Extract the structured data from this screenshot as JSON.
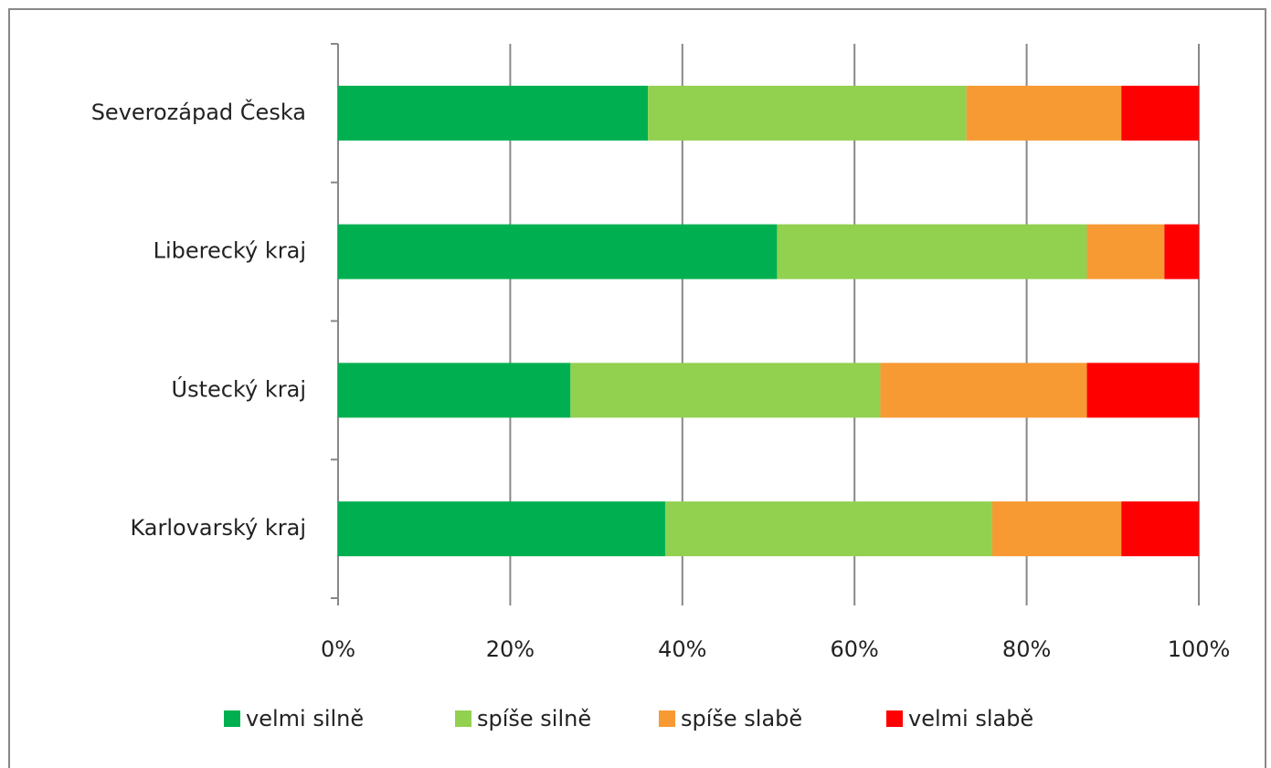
{
  "chart_data": {
    "type": "bar",
    "orientation": "horizontal",
    "stacked": true,
    "categories": [
      "Severozápad Česka",
      "Liberecký kraj",
      "Ústecký kraj",
      "Karlovarský kraj"
    ],
    "series": [
      {
        "name": "velmi silně",
        "color": "#00b050",
        "values": [
          36,
          51,
          27,
          38
        ]
      },
      {
        "name": "spíše silně",
        "color": "#92d050",
        "values": [
          37,
          36,
          36,
          38
        ]
      },
      {
        "name": "spíše slabě",
        "color": "#f79a33",
        "values": [
          18,
          9,
          24,
          15
        ]
      },
      {
        "name": "velmi slabě",
        "color": "#ff0000",
        "values": [
          9,
          4,
          13,
          9
        ]
      }
    ],
    "xlim": [
      0,
      100
    ],
    "xticks": [
      {
        "value": 0,
        "label": "0%"
      },
      {
        "value": 20,
        "label": "20%"
      },
      {
        "value": 40,
        "label": "40%"
      },
      {
        "value": 60,
        "label": "60%"
      },
      {
        "value": 80,
        "label": "80%"
      },
      {
        "value": 100,
        "label": "100%"
      }
    ],
    "grid": true,
    "legend": "bottom"
  }
}
